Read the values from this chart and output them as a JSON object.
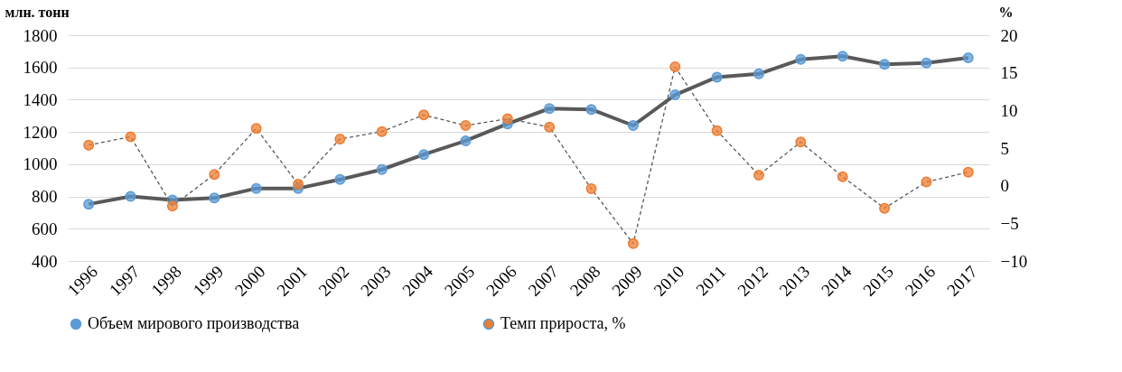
{
  "chart_data": {
    "type": "line",
    "ylabel": "млн. тонн",
    "y2label": "%",
    "categories": [
      "1996",
      "1997",
      "1998",
      "1999",
      "2000",
      "2001",
      "2002",
      "2003",
      "2004",
      "2005",
      "2006",
      "2007",
      "2008",
      "2009",
      "2010",
      "2011",
      "2012",
      "2013",
      "2014",
      "2015",
      "2016",
      "2017"
    ],
    "series": [
      {
        "name": "Объем мирового производства",
        "color": "#5b9bd5",
        "line_style": "solid",
        "values": [
          752,
          800,
          778,
          790,
          850,
          850,
          905,
          967,
          1060,
          1145,
          1250,
          1345,
          1340,
          1240,
          1430,
          1540,
          1560,
          1650,
          1670,
          1620,
          1628,
          1660
        ]
      },
      {
        "name": "Темп прироста, %",
        "color": "#ed7d31",
        "line_style": "dashed",
        "axis": "y2",
        "values": [
          5.4,
          6.5,
          -2.7,
          1.5,
          7.6,
          0.2,
          6.2,
          7.2,
          9.4,
          8.0,
          8.9,
          7.8,
          -0.4,
          -7.7,
          15.8,
          7.3,
          1.4,
          5.8,
          1.2,
          -3.0,
          0.5,
          1.8
        ]
      }
    ],
    "ylim": [
      400,
      1800
    ],
    "yticks": [
      400,
      600,
      800,
      1000,
      1200,
      1400,
      1600,
      1800
    ],
    "y2lim": [
      -10,
      20
    ],
    "y2ticks": [
      -10,
      -5,
      0,
      5,
      10,
      15,
      20
    ],
    "grid": "y",
    "legend": "bottom",
    "marker": "circle"
  }
}
